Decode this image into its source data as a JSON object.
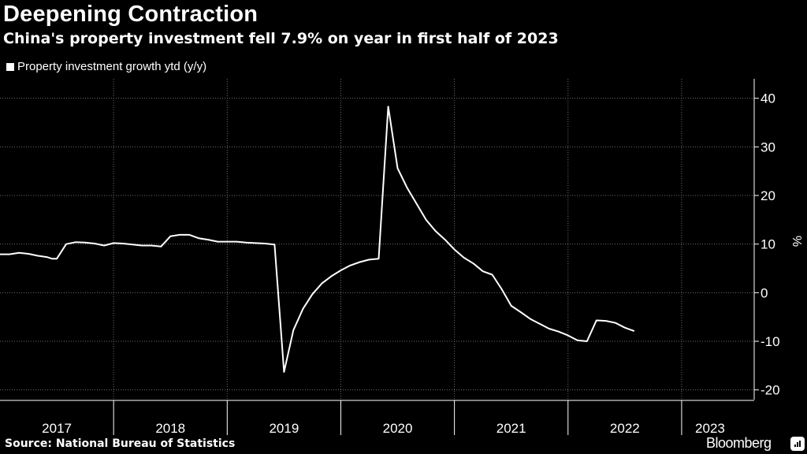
{
  "title": "Deepening Contraction",
  "subtitle": "China's property investment fell 7.9% on year in first half of 2023",
  "legend": "Property investment growth ytd (y/y)",
  "source": "Source: National Bureau of Statistics",
  "brand": "Bloomberg",
  "colors": {
    "background": "#000000",
    "line": "#ffffff",
    "grid": "#6e6e6e"
  },
  "chart_data": {
    "type": "line",
    "title": "Deepening Contraction",
    "ylabel": "%",
    "ylim": [
      -22,
      44
    ],
    "yticks": [
      40,
      30,
      20,
      10,
      0,
      -10,
      -20
    ],
    "xlim": [
      2017.0,
      2023.5
    ],
    "year_labels": [
      {
        "label": "2017",
        "x": 2017.5
      },
      {
        "label": "2018",
        "x": 2018.5
      },
      {
        "label": "2019",
        "x": 2019.5
      },
      {
        "label": "2020",
        "x": 2020.5
      },
      {
        "label": "2021",
        "x": 2021.5
      },
      {
        "label": "2022",
        "x": 2022.5
      },
      {
        "label": "2023",
        "x": 2023.25
      }
    ],
    "year_boundaries": [
      2018,
      2019,
      2020,
      2021,
      2022,
      2023
    ],
    "series": [
      {
        "name": "Property investment growth ytd (y/y)",
        "points": [
          [
            2017.0,
            7.9
          ],
          [
            2017.083,
            7.9
          ],
          [
            2017.167,
            8.2
          ],
          [
            2017.25,
            8.0
          ],
          [
            2017.333,
            7.6
          ],
          [
            2017.417,
            7.3
          ],
          [
            2017.458,
            7.0
          ],
          [
            2017.5,
            7.0
          ],
          [
            2017.583,
            10.0
          ],
          [
            2017.667,
            10.4
          ],
          [
            2017.75,
            10.3
          ],
          [
            2017.833,
            10.1
          ],
          [
            2017.917,
            9.7
          ],
          [
            2018.0,
            10.2
          ],
          [
            2018.083,
            10.1
          ],
          [
            2018.167,
            9.9
          ],
          [
            2018.25,
            9.7
          ],
          [
            2018.333,
            9.7
          ],
          [
            2018.417,
            9.5
          ],
          [
            2018.5,
            11.6
          ],
          [
            2018.583,
            11.9
          ],
          [
            2018.667,
            11.9
          ],
          [
            2018.75,
            11.2
          ],
          [
            2018.833,
            10.9
          ],
          [
            2018.917,
            10.5
          ],
          [
            2019.0,
            10.5
          ],
          [
            2019.083,
            10.5
          ],
          [
            2019.167,
            10.3
          ],
          [
            2019.25,
            10.2
          ],
          [
            2019.333,
            10.1
          ],
          [
            2019.417,
            9.9
          ],
          [
            2019.5,
            -16.3
          ],
          [
            2019.583,
            -7.7
          ],
          [
            2019.667,
            -3.3
          ],
          [
            2019.75,
            -0.3
          ],
          [
            2019.833,
            1.9
          ],
          [
            2019.917,
            3.4
          ],
          [
            2020.0,
            4.6
          ],
          [
            2020.083,
            5.6
          ],
          [
            2020.167,
            6.3
          ],
          [
            2020.25,
            6.8
          ],
          [
            2020.333,
            7.0
          ],
          [
            2020.417,
            38.3
          ],
          [
            2020.5,
            25.6
          ],
          [
            2020.583,
            21.6
          ],
          [
            2020.667,
            18.3
          ],
          [
            2020.75,
            15.0
          ],
          [
            2020.833,
            12.7
          ],
          [
            2020.917,
            10.9
          ],
          [
            2021.0,
            8.9
          ],
          [
            2021.083,
            7.2
          ],
          [
            2021.167,
            6.0
          ],
          [
            2021.25,
            4.4
          ],
          [
            2021.333,
            3.7
          ],
          [
            2021.417,
            0.7
          ],
          [
            2021.5,
            -2.7
          ],
          [
            2021.583,
            -4.0
          ],
          [
            2021.667,
            -5.4
          ],
          [
            2021.75,
            -6.4
          ],
          [
            2021.833,
            -7.4
          ],
          [
            2021.917,
            -8.0
          ],
          [
            2022.0,
            -8.8
          ],
          [
            2022.083,
            -9.8
          ],
          [
            2022.167,
            -10.0
          ],
          [
            2022.25,
            -5.7
          ],
          [
            2022.333,
            -5.8
          ],
          [
            2022.417,
            -6.2
          ],
          [
            2022.5,
            -7.2
          ],
          [
            2022.583,
            -7.9
          ]
        ]
      }
    ]
  }
}
